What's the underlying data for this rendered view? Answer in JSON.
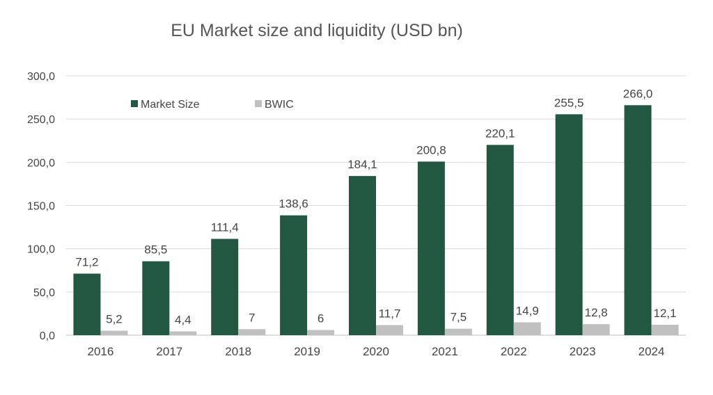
{
  "chart_data": {
    "type": "bar",
    "title": "EU Market size and liquidity (USD bn)",
    "xlabel": "",
    "ylabel": "",
    "categories": [
      "2016",
      "2017",
      "2018",
      "2019",
      "2020",
      "2021",
      "2022",
      "2023",
      "2024"
    ],
    "series": [
      {
        "name": "Market Size",
        "color": "#225741",
        "values": [
          71.2,
          85.5,
          111.4,
          138.6,
          184.1,
          200.8,
          220.1,
          255.5,
          266.0
        ],
        "labels": [
          "71,2",
          "85,5",
          "111,4",
          "138,6",
          "184,1",
          "200,8",
          "220,1",
          "255,5",
          "266,0"
        ]
      },
      {
        "name": "BWIC",
        "color": "#c0c0c0",
        "values": [
          5.2,
          4.4,
          7,
          6,
          11.7,
          7.5,
          14.9,
          12.8,
          12.1
        ],
        "labels": [
          "5,2",
          "4,4",
          "7",
          "6",
          "11,7",
          "7,5",
          "14,9",
          "12,8",
          "12,1"
        ]
      }
    ],
    "ylim": [
      0,
      300
    ],
    "yticks": [
      0,
      50,
      100,
      150,
      200,
      250,
      300
    ],
    "ytick_labels": [
      "0,0",
      "50,0",
      "100,0",
      "150,0",
      "200,0",
      "250,0",
      "300,0"
    ],
    "grid": true,
    "legend": "top-left"
  }
}
